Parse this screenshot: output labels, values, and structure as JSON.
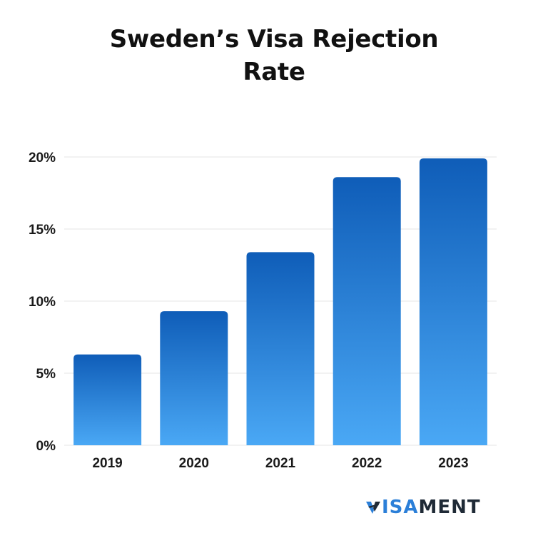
{
  "title": {
    "line1": "Sweden’s Visa Rejection",
    "line2": "Rate"
  },
  "chart_data": {
    "type": "bar",
    "title": "Sweden’s Visa Rejection Rate",
    "categories": [
      "2019",
      "2020",
      "2021",
      "2022",
      "2023"
    ],
    "values": [
      6.3,
      9.3,
      13.4,
      18.6,
      19.9
    ],
    "ylim": [
      0,
      20
    ],
    "yticks": [
      0,
      5,
      10,
      15,
      20
    ],
    "ytick_labels": [
      "0%",
      "5%",
      "10%",
      "15%",
      "20%"
    ],
    "grid": true,
    "bar_gradient": {
      "top": "#0f5db8",
      "bottom": "#4aa8f5"
    },
    "grid_color": "#e6e6e6"
  },
  "logo": {
    "text_accent": "ISA",
    "text_rest": "MENT",
    "full_text": "VISAMENT",
    "accent_color": "#2b7fd8",
    "text_color": "#1f2a36"
  }
}
